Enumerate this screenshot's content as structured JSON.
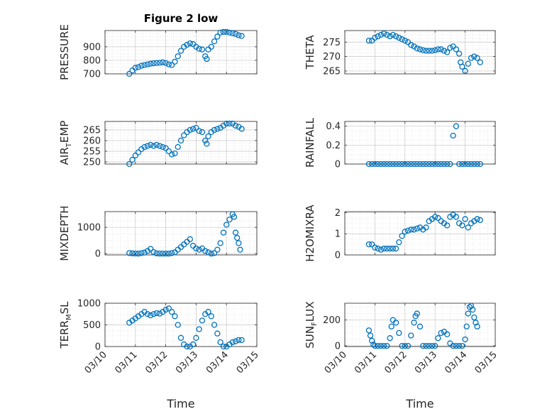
{
  "figure": {
    "title": "Figure 2 low",
    "xlabel": "Time",
    "marker_color": "#0072BD",
    "x_ticks": [
      "03/10",
      "03/11",
      "03/12",
      "03/13",
      "03/14",
      "03/15"
    ]
  },
  "chart_data": [
    {
      "type": "scatter",
      "ylabel": "PRESSURE",
      "ylim": [
        700,
        1020
      ],
      "yticks": [
        "700",
        "800",
        "900"
      ],
      "ytick_values": [
        700,
        800,
        900
      ],
      "x": [
        10.8,
        10.9,
        11.0,
        11.1,
        11.2,
        11.3,
        11.4,
        11.5,
        11.6,
        11.7,
        11.8,
        11.9,
        12.0,
        12.1,
        12.2,
        12.3,
        12.4,
        12.5,
        12.6,
        12.7,
        12.8,
        12.9,
        13.0,
        13.1,
        13.2,
        13.3,
        13.35,
        13.4,
        13.5,
        13.6,
        13.7,
        13.8,
        13.9,
        14.0,
        14.1,
        14.2,
        14.3,
        14.4,
        14.5
      ],
      "values": [
        700,
        725,
        745,
        750,
        760,
        765,
        770,
        775,
        778,
        780,
        782,
        785,
        780,
        770,
        765,
        790,
        830,
        870,
        900,
        915,
        925,
        920,
        900,
        885,
        880,
        830,
        810,
        880,
        900,
        940,
        975,
        1005,
        1010,
        1010,
        1005,
        1000,
        995,
        985,
        980
      ]
    },
    {
      "type": "scatter",
      "ylabel": "THETA",
      "ylim": [
        264,
        279
      ],
      "yticks": [
        "265",
        "270",
        "275"
      ],
      "ytick_values": [
        265,
        270,
        275
      ],
      "x": [
        10.8,
        10.9,
        11.0,
        11.1,
        11.2,
        11.3,
        11.4,
        11.5,
        11.6,
        11.7,
        11.8,
        11.9,
        12.0,
        12.1,
        12.2,
        12.3,
        12.4,
        12.5,
        12.6,
        12.7,
        12.8,
        12.9,
        13.0,
        13.1,
        13.2,
        13.3,
        13.4,
        13.5,
        13.6,
        13.7,
        13.8,
        13.85,
        13.9,
        14.0,
        14.1,
        14.2,
        14.3,
        14.4,
        14.5
      ],
      "values": [
        275.5,
        275.5,
        276.5,
        277.0,
        277.5,
        278.0,
        277.5,
        277.0,
        277.5,
        277.0,
        276.5,
        276.0,
        275.5,
        275.0,
        274.0,
        273.5,
        272.8,
        272.5,
        272.2,
        272.0,
        272.0,
        272.0,
        272.2,
        272.5,
        272.5,
        272.0,
        271.5,
        273.0,
        273.5,
        272.5,
        271.0,
        268.0,
        266.5,
        265.0,
        267.5,
        269.5,
        270.0,
        269.5,
        268.0
      ]
    },
    {
      "type": "scatter",
      "ylabel": "AIR_TEMP",
      "ylim": [
        249,
        269
      ],
      "yticks": [
        "250",
        "255",
        "260",
        "265"
      ],
      "ytick_values": [
        250,
        255,
        260,
        265
      ],
      "x": [
        10.8,
        10.9,
        11.0,
        11.1,
        11.2,
        11.3,
        11.4,
        11.5,
        11.6,
        11.7,
        11.8,
        11.9,
        12.0,
        12.1,
        12.2,
        12.3,
        12.4,
        12.5,
        12.6,
        12.7,
        12.8,
        12.9,
        13.0,
        13.1,
        13.2,
        13.3,
        13.35,
        13.4,
        13.5,
        13.6,
        13.7,
        13.8,
        13.9,
        14.0,
        14.1,
        14.2,
        14.3,
        14.4,
        14.5
      ],
      "values": [
        249,
        251,
        253,
        254.5,
        256,
        257,
        257.5,
        258,
        257.5,
        258,
        257.5,
        257,
        256.5,
        255,
        253.5,
        254,
        257,
        260,
        262.5,
        264,
        265,
        265.5,
        266,
        264.5,
        264,
        260,
        258.5,
        262,
        264,
        265,
        265.5,
        266,
        267,
        268,
        268,
        268,
        267,
        266.5,
        265.5
      ]
    },
    {
      "type": "scatter",
      "ylabel": "RAINFALL",
      "ylim": [
        0,
        0.45
      ],
      "yticks": [
        "0",
        "0.2",
        "0.4"
      ],
      "ytick_values": [
        0,
        0.2,
        0.4
      ],
      "x": [
        10.8,
        10.9,
        11.0,
        11.1,
        11.2,
        11.3,
        11.4,
        11.5,
        11.6,
        11.7,
        11.8,
        11.9,
        12.0,
        12.1,
        12.2,
        12.3,
        12.4,
        12.5,
        12.6,
        12.7,
        12.8,
        12.9,
        13.0,
        13.1,
        13.2,
        13.3,
        13.4,
        13.5,
        13.6,
        13.7,
        13.8,
        13.9,
        14.0,
        14.1,
        14.2,
        14.3,
        14.4,
        14.5
      ],
      "values": [
        0,
        0,
        0,
        0,
        0,
        0,
        0,
        0,
        0,
        0,
        0,
        0,
        0,
        0,
        0,
        0,
        0,
        0,
        0,
        0,
        0,
        0,
        0,
        0,
        0,
        0,
        0,
        0,
        0.3,
        0.4,
        0,
        0,
        0,
        0,
        0,
        0,
        0,
        0
      ]
    },
    {
      "type": "scatter",
      "ylabel": "MIXDEPTH",
      "ylim": [
        -50,
        1600
      ],
      "yticks": [
        "0",
        "1000"
      ],
      "ytick_values": [
        0,
        1000
      ],
      "x": [
        10.8,
        10.9,
        11.0,
        11.1,
        11.2,
        11.3,
        11.4,
        11.5,
        11.6,
        11.7,
        11.8,
        11.9,
        12.0,
        12.1,
        12.2,
        12.3,
        12.4,
        12.5,
        12.6,
        12.7,
        12.8,
        12.9,
        13.0,
        13.1,
        13.2,
        13.3,
        13.4,
        13.5,
        13.6,
        13.7,
        13.8,
        13.9,
        14.0,
        14.1,
        14.2,
        14.25,
        14.3,
        14.35,
        14.4,
        14.45
      ],
      "values": [
        20,
        10,
        5,
        0,
        20,
        40,
        100,
        180,
        60,
        10,
        0,
        0,
        0,
        0,
        20,
        50,
        150,
        250,
        350,
        450,
        550,
        300,
        200,
        150,
        200,
        100,
        50,
        0,
        20,
        150,
        400,
        800,
        1100,
        1300,
        1500,
        1400,
        800,
        600,
        400,
        150
      ]
    },
    {
      "type": "scatter",
      "ylabel": "H2OMIXRA",
      "ylim": [
        0,
        2.05
      ],
      "yticks": [
        "0",
        "1",
        "2"
      ],
      "ytick_values": [
        0,
        1,
        2
      ],
      "x": [
        10.8,
        10.9,
        11.0,
        11.1,
        11.2,
        11.3,
        11.4,
        11.5,
        11.6,
        11.7,
        11.8,
        11.9,
        12.0,
        12.1,
        12.2,
        12.3,
        12.4,
        12.5,
        12.6,
        12.7,
        12.8,
        12.9,
        13.0,
        13.1,
        13.2,
        13.3,
        13.4,
        13.5,
        13.6,
        13.7,
        13.8,
        13.9,
        14.0,
        14.1,
        14.2,
        14.3,
        14.4,
        14.5
      ],
      "values": [
        0.5,
        0.5,
        0.35,
        0.3,
        0.25,
        0.3,
        0.3,
        0.3,
        0.3,
        0.3,
        0.6,
        0.9,
        1.1,
        1.15,
        1.2,
        1.2,
        1.25,
        1.3,
        1.2,
        1.3,
        1.6,
        1.7,
        1.8,
        1.75,
        1.6,
        1.5,
        1.4,
        1.8,
        1.9,
        1.8,
        1.5,
        1.4,
        1.7,
        1.3,
        1.5,
        1.6,
        1.7,
        1.65
      ]
    },
    {
      "type": "scatter",
      "ylabel": "TERR_MSL",
      "ylim": [
        0,
        1000
      ],
      "yticks": [
        "0",
        "500",
        "1000"
      ],
      "ytick_values": [
        0,
        500,
        1000
      ],
      "x": [
        10.8,
        10.9,
        11.0,
        11.1,
        11.2,
        11.3,
        11.4,
        11.5,
        11.6,
        11.7,
        11.8,
        11.9,
        12.0,
        12.1,
        12.2,
        12.3,
        12.4,
        12.5,
        12.6,
        12.7,
        12.8,
        12.9,
        13.0,
        13.1,
        13.2,
        13.3,
        13.4,
        13.5,
        13.6,
        13.7,
        13.8,
        13.9,
        14.0,
        14.1,
        14.2,
        14.3,
        14.4,
        14.5
      ],
      "values": [
        550,
        600,
        650,
        700,
        750,
        800,
        750,
        720,
        750,
        770,
        760,
        800,
        850,
        880,
        800,
        700,
        500,
        200,
        50,
        0,
        0,
        50,
        200,
        400,
        600,
        750,
        800,
        700,
        500,
        300,
        100,
        0,
        0,
        50,
        100,
        120,
        150,
        150
      ]
    },
    {
      "type": "scatter",
      "ylabel": "SUN_FLUX",
      "ylim": [
        -5,
        330
      ],
      "yticks": [
        "0",
        "200"
      ],
      "ytick_values": [
        0,
        200
      ],
      "x": [
        10.8,
        10.85,
        10.9,
        10.95,
        11.0,
        11.1,
        11.2,
        11.3,
        11.4,
        11.5,
        11.55,
        11.6,
        11.7,
        11.8,
        11.9,
        12.0,
        12.1,
        12.2,
        12.3,
        12.35,
        12.4,
        12.5,
        12.6,
        12.7,
        12.8,
        12.9,
        13.0,
        13.1,
        13.2,
        13.3,
        13.4,
        13.5,
        13.6,
        13.7,
        13.8,
        13.9,
        14.0,
        14.05,
        14.1,
        14.15,
        14.2,
        14.25,
        14.3,
        14.35,
        14.4
      ],
      "values": [
        120,
        80,
        40,
        10,
        0,
        0,
        0,
        0,
        0,
        60,
        150,
        200,
        180,
        100,
        0,
        0,
        0,
        80,
        180,
        230,
        250,
        150,
        0,
        0,
        0,
        0,
        0,
        60,
        100,
        110,
        90,
        20,
        0,
        0,
        0,
        0,
        50,
        150,
        250,
        300,
        310,
        280,
        220,
        180,
        150
      ]
    }
  ]
}
